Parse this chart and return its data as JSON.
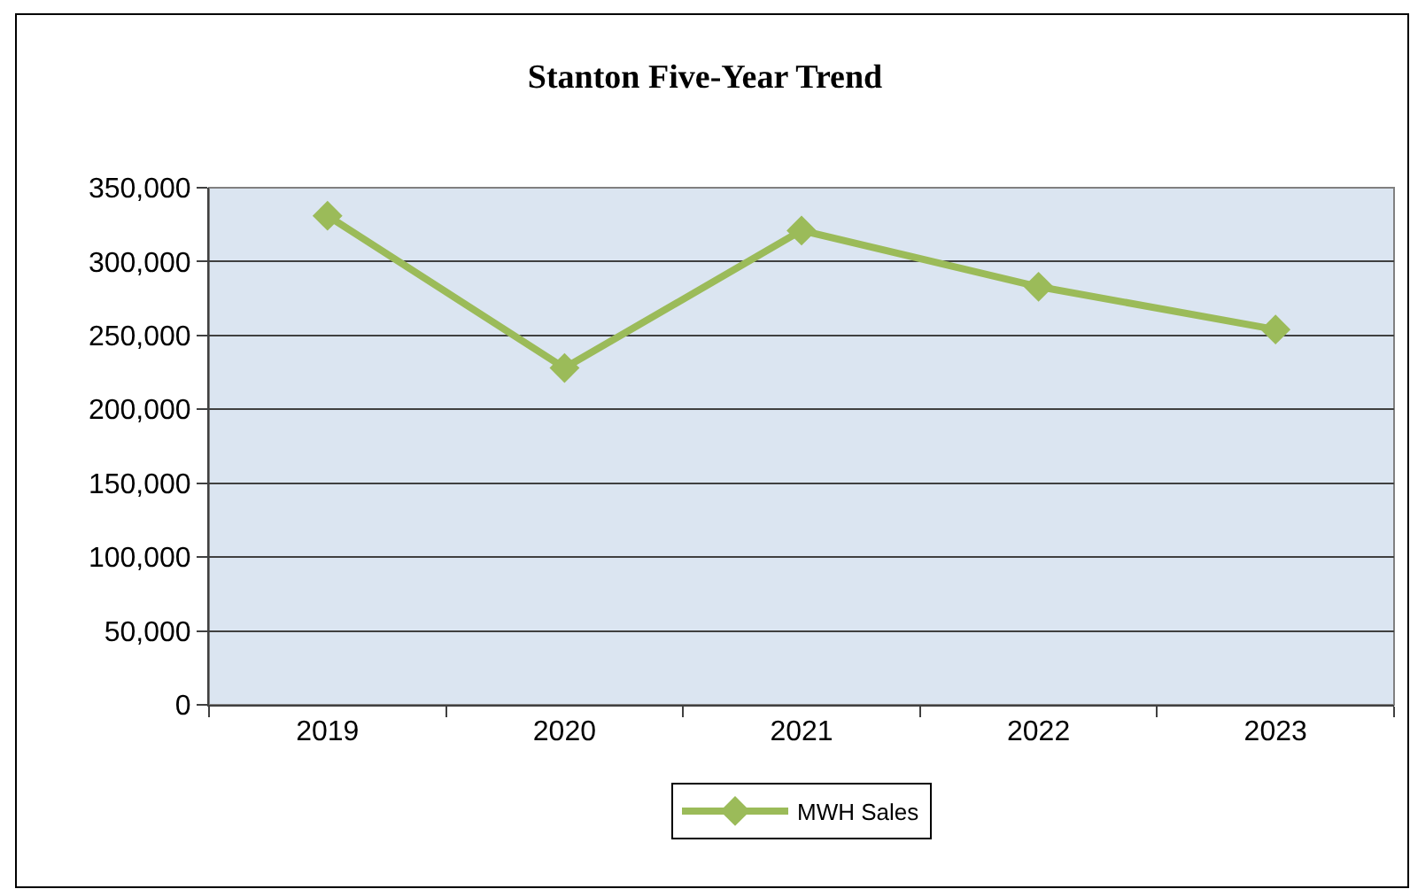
{
  "chart_data": {
    "type": "line",
    "title": "Stanton Five-Year Trend",
    "categories": [
      "2019",
      "2020",
      "2021",
      "2022",
      "2023"
    ],
    "series": [
      {
        "name": "MWH Sales",
        "color": "#9bbb59",
        "values": [
          331000,
          228000,
          321000,
          283000,
          254000
        ]
      }
    ],
    "ylim": [
      0,
      350000
    ],
    "yticks": [
      0,
      {
        "value": 50000,
        "label": "50,000"
      },
      {
        "value": 100000,
        "label": "100,000"
      },
      {
        "value": 150000,
        "label": "150,000"
      },
      {
        "value": 200000,
        "label": "200,000"
      },
      {
        "value": 250000,
        "label": "250,000"
      },
      {
        "value": 300000,
        "label": "300,000"
      },
      {
        "value": 350000,
        "label": "350,000"
      }
    ],
    "grid": "y",
    "legend": "bottom",
    "marker": "diamond",
    "line_style": "solid"
  }
}
